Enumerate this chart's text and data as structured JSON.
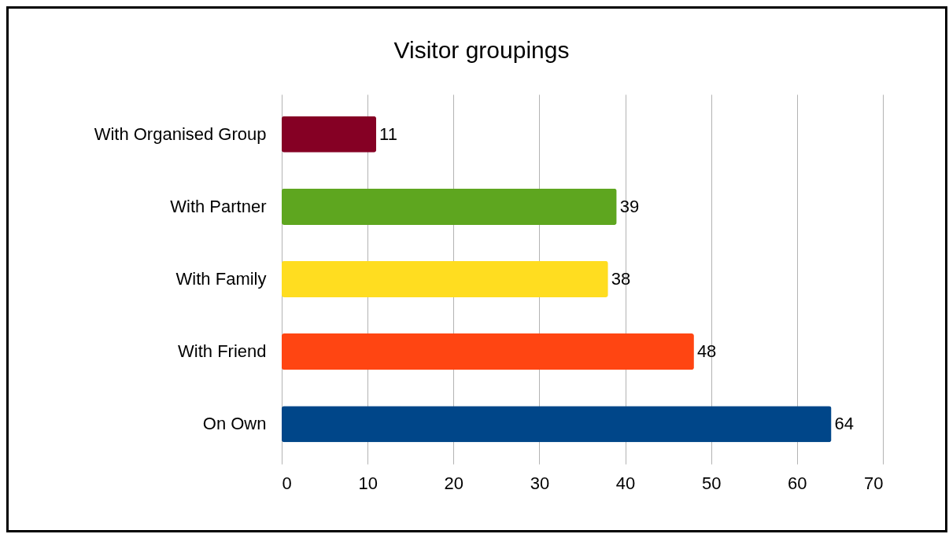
{
  "chart_data": {
    "type": "bar",
    "orientation": "horizontal",
    "title": "Visitor groupings",
    "categories": [
      "With Organised Group",
      "With Partner",
      "With Family",
      "With Friend",
      "On Own"
    ],
    "values": [
      11,
      39,
      38,
      48,
      64
    ],
    "colors": [
      "#850024",
      "#5ea61f",
      "#ffdd20",
      "#ff4512",
      "#004689"
    ],
    "xlim": [
      0,
      70
    ],
    "xticks": [
      0,
      10,
      20,
      30,
      40,
      50,
      60,
      70
    ],
    "grid": "x",
    "data_labels": true
  }
}
